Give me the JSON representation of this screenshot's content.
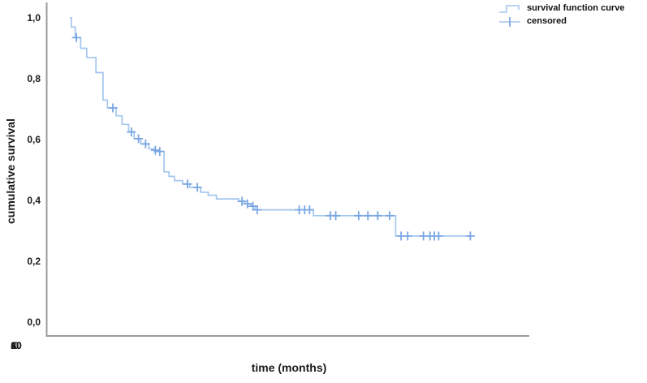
{
  "chart_data": {
    "type": "line",
    "chart_kind": "kaplan_meier_step",
    "title": "",
    "xlabel": "time (months)",
    "ylabel": "cumulative survival",
    "xlim": [
      0,
      80
    ],
    "ylim": [
      0.0,
      1.0
    ],
    "grid": false,
    "legend_position": "top-right",
    "x_ticks": [
      0,
      20,
      40,
      60,
      80
    ],
    "x_tick_labels": [
      "0",
      "20",
      "40",
      "60",
      "80"
    ],
    "y_ticks": [
      1.0,
      0.8,
      0.6,
      0.4,
      0.2,
      0.0
    ],
    "y_tick_labels": [
      "1,0",
      "0,8",
      "0,6",
      "0,4",
      "0,2",
      "0,0"
    ],
    "series": [
      {
        "name": "survival function curve",
        "type": "step",
        "steps": [
          [
            0.0,
            1.0
          ],
          [
            0.3,
            0.97
          ],
          [
            1.0,
            0.935
          ],
          [
            2.0,
            0.9
          ],
          [
            3.1,
            0.87
          ],
          [
            4.8,
            0.82
          ],
          [
            6.1,
            0.73
          ],
          [
            6.9,
            0.704
          ],
          [
            8.5,
            0.678
          ],
          [
            9.6,
            0.65
          ],
          [
            10.8,
            0.625
          ],
          [
            11.8,
            0.603
          ],
          [
            13.0,
            0.586
          ],
          [
            14.5,
            0.57
          ],
          [
            15.5,
            0.561
          ],
          [
            17.3,
            0.494
          ],
          [
            18.2,
            0.479
          ],
          [
            19.2,
            0.465
          ],
          [
            20.7,
            0.454
          ],
          [
            22.0,
            0.443
          ],
          [
            24.0,
            0.427
          ],
          [
            25.4,
            0.417
          ],
          [
            26.9,
            0.405
          ],
          [
            31.0,
            0.397
          ],
          [
            32.1,
            0.389
          ],
          [
            33.2,
            0.381
          ],
          [
            34.0,
            0.369
          ],
          [
            44.7,
            0.35
          ],
          [
            59.8,
            0.283
          ]
        ],
        "end_time": 73.6
      }
    ],
    "censored": {
      "name": "censored",
      "marker": "plus",
      "points": [
        [
          1.2,
          0.935
        ],
        [
          7.9,
          0.704
        ],
        [
          11.3,
          0.625
        ],
        [
          12.6,
          0.603
        ],
        [
          13.9,
          0.586
        ],
        [
          15.7,
          0.565
        ],
        [
          16.5,
          0.561
        ],
        [
          21.6,
          0.454
        ],
        [
          23.4,
          0.443
        ],
        [
          31.6,
          0.397
        ],
        [
          32.6,
          0.389
        ],
        [
          33.6,
          0.381
        ],
        [
          34.4,
          0.369
        ],
        [
          42.1,
          0.369
        ],
        [
          43.1,
          0.369
        ],
        [
          44.0,
          0.369
        ],
        [
          47.8,
          0.35
        ],
        [
          48.8,
          0.35
        ],
        [
          53.0,
          0.35
        ],
        [
          54.7,
          0.35
        ],
        [
          56.5,
          0.35
        ],
        [
          58.7,
          0.35
        ],
        [
          60.8,
          0.283
        ],
        [
          62.0,
          0.283
        ],
        [
          64.9,
          0.283
        ],
        [
          66.1,
          0.283
        ],
        [
          66.9,
          0.283
        ],
        [
          67.7,
          0.283
        ],
        [
          73.5,
          0.283
        ]
      ]
    }
  },
  "legend": {
    "items": [
      {
        "label": "survival function curve",
        "glyph": "step-line-icon"
      },
      {
        "label": "censored",
        "glyph": "plus-marker-icon"
      }
    ]
  },
  "colors": {
    "curve": "#a3c6ee",
    "censor": "#79a6e3",
    "axis": "#9b9b9b",
    "text": "#1a1a1a",
    "background": "#ffffff"
  }
}
